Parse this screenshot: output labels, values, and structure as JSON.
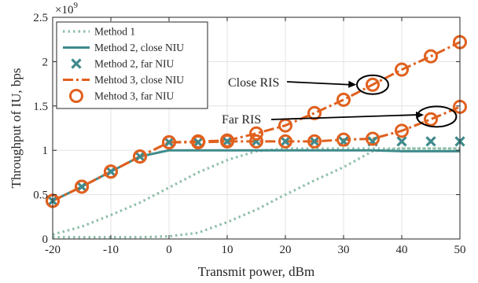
{
  "chart_data": {
    "type": "line",
    "xlabel": "Transmit power, dBm",
    "ylabel": "Throughput of IU, bps",
    "y_multiplier": "×10",
    "y_exponent": "9",
    "xlim": [
      -20,
      50
    ],
    "ylim": [
      0,
      2.5
    ],
    "xticks": [
      -20,
      -10,
      0,
      10,
      20,
      30,
      40,
      50
    ],
    "yticks": [
      0,
      0.5,
      1,
      1.5,
      2,
      2.5
    ],
    "grid": true,
    "legend_position": "top-left",
    "series": [
      {
        "name": "Method 1",
        "style": "dotted",
        "color": "#8fbfa8",
        "x": [
          -20,
          -15,
          -10,
          -5,
          0,
          5,
          10,
          15,
          20,
          25,
          30,
          35,
          40,
          45,
          50
        ],
        "y": [
          0.02,
          0.02,
          0.02,
          0.02,
          0.03,
          0.07,
          0.19,
          0.33,
          0.5,
          0.66,
          0.81,
          0.99,
          1.02,
          1.02,
          1.02
        ]
      },
      {
        "name": "",
        "style": "dotted",
        "color": "#8fbfa8",
        "x": [
          -20,
          -15,
          -10,
          -5,
          0,
          5,
          10,
          15,
          20,
          25,
          30,
          35,
          40,
          45,
          50
        ],
        "y": [
          0.05,
          0.14,
          0.27,
          0.41,
          0.58,
          0.75,
          0.89,
          0.99,
          1.02,
          1.02,
          1.02,
          1.02,
          1.02,
          1.02,
          1.02
        ]
      },
      {
        "name": "Method 2, close NIU",
        "style": "solid",
        "color": "#3f8a8c",
        "x": [
          -20,
          -15,
          -10,
          -5,
          0,
          5,
          10,
          15,
          20,
          25,
          30,
          35,
          40,
          45,
          50
        ],
        "y": [
          0.43,
          0.59,
          0.76,
          0.93,
          1.0,
          1.0,
          1.0,
          1.0,
          1.0,
          1.0,
          1.0,
          1.0,
          0.99,
          0.99,
          0.99
        ]
      },
      {
        "name": "Method 2, far NIU",
        "style": "x-markers",
        "color": "#3f8a8c",
        "x": [
          -20,
          -15,
          -10,
          -5,
          0,
          5,
          10,
          15,
          20,
          25,
          30,
          35,
          40,
          45,
          50
        ],
        "y": [
          0.43,
          0.59,
          0.76,
          0.93,
          1.09,
          1.09,
          1.1,
          1.1,
          1.1,
          1.1,
          1.1,
          1.1,
          1.1,
          1.1,
          1.1
        ]
      },
      {
        "name": "Mehtod 3, close NIU",
        "style": "dashdot",
        "color": "#e0601e",
        "x": [
          -20,
          -15,
          -10,
          -5,
          0,
          5,
          10,
          15,
          20,
          25,
          30,
          35,
          40,
          45,
          50
        ],
        "y": [
          0.43,
          0.59,
          0.76,
          0.93,
          1.09,
          1.1,
          1.11,
          1.19,
          1.28,
          1.42,
          1.57,
          1.74,
          1.91,
          2.06,
          2.22
        ]
      },
      {
        "name": "",
        "style": "dashdot",
        "color": "#e0601e",
        "x": [
          -20,
          -15,
          -10,
          -5,
          0,
          5,
          10,
          15,
          20,
          25,
          30,
          35,
          40,
          45,
          50
        ],
        "y": [
          0.43,
          0.59,
          0.76,
          0.93,
          1.09,
          1.09,
          1.1,
          1.1,
          1.1,
          1.1,
          1.12,
          1.13,
          1.22,
          1.35,
          1.49
        ]
      },
      {
        "name": "Mehtod 3, far NIU",
        "style": "circle-markers",
        "color": "#e0601e",
        "x": [
          -20,
          -15,
          -10,
          -5,
          0,
          5,
          10,
          15,
          20,
          25,
          30,
          35,
          40,
          45,
          50
        ],
        "y": [
          0.43,
          0.59,
          0.76,
          0.93,
          1.09,
          1.1,
          1.11,
          1.19,
          1.28,
          1.42,
          1.57,
          1.74,
          1.91,
          2.06,
          2.22
        ]
      },
      {
        "name": "",
        "style": "circle-markers",
        "color": "#e0601e",
        "x": [
          -20,
          -15,
          -10,
          -5,
          0,
          5,
          10,
          15,
          20,
          25,
          30,
          35,
          40,
          45,
          50
        ],
        "y": [
          0.43,
          0.59,
          0.76,
          0.93,
          1.09,
          1.09,
          1.1,
          1.1,
          1.1,
          1.1,
          1.12,
          1.13,
          1.22,
          1.35,
          1.49
        ]
      }
    ],
    "annotations": [
      {
        "text": "Close RIS",
        "ellipse_center": [
          35,
          1.74
        ],
        "arrow_to": [
          32.2,
          1.74
        ]
      },
      {
        "text": "Far RIS",
        "ellipse_center": [
          46,
          1.38
        ],
        "arrow_to": [
          43.8,
          1.4
        ]
      }
    ]
  }
}
